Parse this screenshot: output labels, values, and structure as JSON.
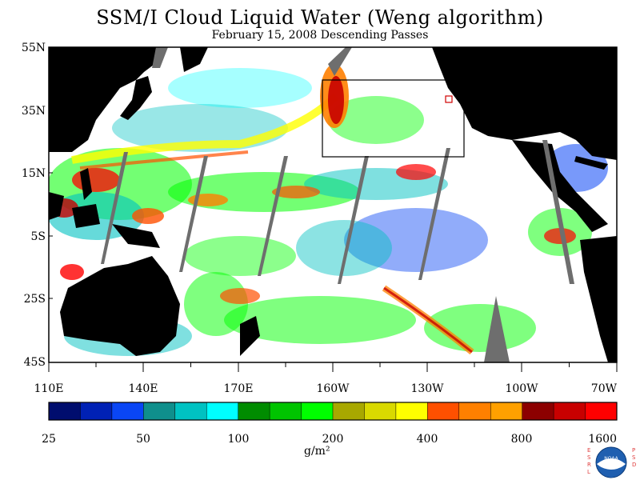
{
  "title": "SSM/I Cloud Liquid Water (Weng algorithm)",
  "subtitle": "February 15, 2008  Descending Passes",
  "map": {
    "lat_labels": [
      "55N",
      "35N",
      "15N",
      "5S",
      "25S",
      "45S"
    ],
    "lon_labels": [
      "110E",
      "140E",
      "170E",
      "160W",
      "130W",
      "100W",
      "70W"
    ],
    "land_color": "#000000",
    "missing_color": "#6e6e6e",
    "clear_color": "#ffffff"
  },
  "colorbar": {
    "colors": [
      "#000d6e",
      "#0021b5",
      "#0a46f5",
      "#0f8f8c",
      "#00c2c2",
      "#00ffff",
      "#008c00",
      "#00c400",
      "#00ff00",
      "#a8a800",
      "#d9d900",
      "#ffff00",
      "#ff5000",
      "#ff8000",
      "#ffa000",
      "#8c0000",
      "#c80000",
      "#ff0000"
    ],
    "tick_labels": [
      "25",
      "50",
      "100",
      "200",
      "400",
      "800",
      "1600"
    ],
    "units_label": "g/m²"
  },
  "logo": {
    "left_letters": "ESRL",
    "right_letters": "PSD",
    "center_text": "NOAA"
  }
}
